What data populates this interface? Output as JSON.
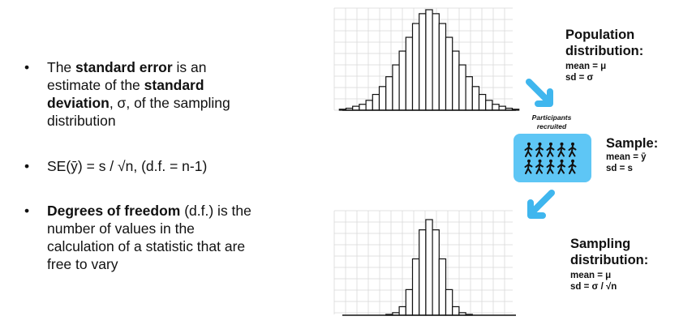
{
  "bullets": [
    {
      "p1": "The ",
      "b1": "standard error",
      "p2": " is an estimate of the ",
      "b2": "standard deviation",
      "p3": ", σ, of the sampling distribution"
    },
    {
      "p1": "SE(ȳ) = s / √n, (d.f. = n-1)"
    },
    {
      "b1": "Degrees of freedom",
      "p1": " (d.f.) is the number of values in the calculation of a statistic that are free to vary"
    }
  ],
  "population": {
    "title_line1": "Population",
    "title_line2": "distribution:",
    "mean": "mean = μ",
    "sd": "sd = σ"
  },
  "sample": {
    "title": "Sample:",
    "mean": "mean = ȳ",
    "sd": "sd = s"
  },
  "sampling": {
    "title_line1": "Sampling",
    "title_line2": "distribution:",
    "mean": "mean = μ",
    "sd": "sd = σ / √n"
  },
  "recruit_label_line1": "Participants",
  "recruit_label_line2": "recruited",
  "colors": {
    "arrow": "#3fb6ee",
    "sample_box": "#5ec6f5",
    "grid": "#d9d9d9",
    "bars": "#111111"
  },
  "icons": {
    "walker": "walking-person-icon",
    "arrow": "arrow-icon"
  },
  "chart_data": [
    {
      "type": "bar",
      "name_ref": "population",
      "values": [
        1,
        2,
        4,
        6,
        10,
        16,
        24,
        34,
        46,
        60,
        74,
        88,
        98,
        102,
        98,
        88,
        74,
        60,
        46,
        34,
        24,
        16,
        10,
        6,
        4,
        2,
        1
      ]
    },
    {
      "type": "bar",
      "name_ref": "sampling",
      "values": [
        1,
        3,
        10,
        30,
        66,
        100,
        112,
        100,
        66,
        30,
        10,
        3,
        1
      ]
    }
  ]
}
